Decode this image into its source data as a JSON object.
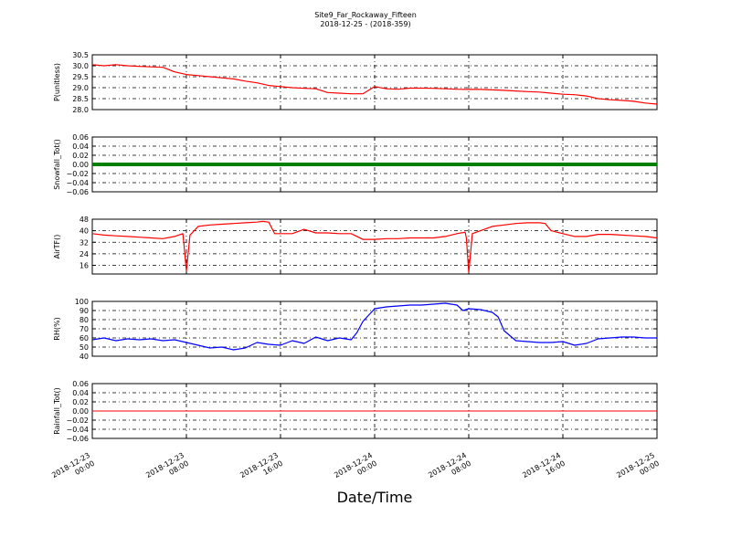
{
  "figure": {
    "title_line1": "Site9_Far_Rockaway_Fifteen",
    "title_line2": "2018-12-25 - (2018-359)",
    "xlabel": "Date/Time"
  },
  "chart_data": [
    {
      "type": "line",
      "id": "pressure",
      "ylabel": "P(unitless)",
      "ylim": [
        28.0,
        30.5
      ],
      "yticks": [
        "30.5",
        "30.0",
        "29.5",
        "29.0",
        "28.5",
        "28.0"
      ],
      "yticks_values": [
        30.5,
        30.0,
        29.5,
        29.0,
        28.5,
        28.0
      ],
      "grid": true,
      "series": [
        {
          "color": "#ff0000",
          "x_hours": [
            0,
            1,
            2,
            3,
            4,
            5,
            6,
            7,
            8,
            9,
            10,
            11,
            12,
            13,
            14,
            15,
            16,
            17,
            18,
            19,
            20,
            21,
            22,
            23,
            24,
            25,
            26,
            27,
            28,
            29,
            30,
            31,
            32,
            33,
            34,
            35,
            36,
            37,
            38,
            39,
            40,
            41,
            42,
            43,
            44,
            45,
            46,
            47,
            48
          ],
          "values": [
            30.05,
            30.0,
            30.05,
            30.0,
            29.97,
            29.95,
            29.93,
            29.72,
            29.6,
            29.55,
            29.5,
            29.45,
            29.4,
            29.3,
            29.22,
            29.1,
            29.05,
            29.0,
            28.97,
            28.95,
            28.78,
            28.75,
            28.72,
            28.72,
            29.05,
            28.95,
            28.93,
            28.98,
            28.98,
            28.97,
            28.95,
            28.93,
            28.92,
            28.92,
            28.9,
            28.88,
            28.85,
            28.82,
            28.8,
            28.75,
            28.7,
            28.68,
            28.62,
            28.5,
            28.45,
            28.42,
            28.38,
            28.3,
            28.25
          ]
        }
      ]
    },
    {
      "type": "line",
      "id": "snowfall",
      "ylabel": "Snowfall_Tot()",
      "ylim": [
        -0.06,
        0.06
      ],
      "yticks": [
        "0.06",
        "0.04",
        "0.02",
        "0.00",
        "−0.02",
        "−0.04",
        "−0.06"
      ],
      "yticks_values": [
        0.06,
        0.04,
        0.02,
        0.0,
        -0.02,
        -0.04,
        -0.06
      ],
      "grid": true,
      "series": [
        {
          "color": "#008000",
          "x_hours": [
            0,
            48
          ],
          "values": [
            0.0,
            0.0
          ],
          "width": 4
        }
      ]
    },
    {
      "type": "line",
      "id": "airtemp",
      "ylabel": "AirTF()",
      "ylim": [
        10,
        48
      ],
      "yticks": [
        "48",
        "40",
        "32",
        "24",
        "16"
      ],
      "yticks_values": [
        48,
        40,
        32,
        24,
        16
      ],
      "grid": true,
      "series": [
        {
          "color": "#ff0000",
          "x_hours": [
            0,
            1,
            2,
            3,
            4,
            5,
            6,
            7,
            7.7,
            7.8,
            8,
            8.3,
            9,
            10,
            11,
            12,
            13,
            14,
            14.5,
            15,
            15.5,
            16,
            17,
            18,
            19,
            20,
            21,
            22,
            23,
            24,
            25,
            26,
            27,
            28,
            29,
            30,
            31,
            31.7,
            31.8,
            32,
            32.3,
            33,
            34,
            35,
            36,
            37,
            38,
            38.5,
            39,
            40,
            41,
            42,
            43,
            44,
            45,
            46,
            47,
            48
          ],
          "values": [
            38,
            37,
            36.5,
            36,
            35.5,
            35,
            34.5,
            36,
            38,
            30,
            12,
            37,
            43,
            44,
            44.5,
            45,
            45.5,
            46,
            46.5,
            46,
            38,
            38,
            38,
            41,
            38.5,
            38.5,
            38,
            38,
            34,
            34,
            34.5,
            34.5,
            35,
            35,
            35,
            36,
            38,
            39,
            35,
            11,
            38,
            40,
            43,
            44,
            45,
            45.5,
            45.5,
            45,
            40,
            38,
            36,
            36,
            37.5,
            37.5,
            37,
            36.5,
            36,
            35
          ]
        }
      ]
    },
    {
      "type": "line",
      "id": "rh",
      "ylabel": "RH(%)",
      "ylim": [
        40,
        100
      ],
      "yticks": [
        "100",
        "90",
        "80",
        "70",
        "60",
        "50",
        "40"
      ],
      "yticks_values": [
        100,
        90,
        80,
        70,
        60,
        50,
        40
      ],
      "grid": true,
      "series": [
        {
          "color": "#0000ff",
          "x_hours": [
            0,
            1,
            2,
            3,
            4,
            5,
            6,
            7,
            8,
            9,
            10,
            11,
            12,
            13,
            14,
            15,
            16,
            17,
            18,
            19,
            20,
            21,
            22,
            22.5,
            23,
            24,
            25,
            26,
            27,
            28,
            29,
            30,
            31,
            31.5,
            32,
            33,
            34,
            34.5,
            35,
            36,
            37,
            38,
            39,
            40,
            41,
            42,
            43,
            44,
            45,
            46,
            47,
            48
          ],
          "values": [
            58,
            60,
            57,
            59,
            58,
            59,
            57,
            58,
            55,
            52,
            49,
            50,
            47,
            49,
            55,
            53,
            52,
            57,
            54,
            61,
            57,
            60,
            58,
            66,
            78,
            92,
            94,
            95,
            96,
            96,
            97,
            98,
            96,
            90,
            92,
            91,
            88,
            83,
            68,
            57,
            56,
            55,
            55,
            56,
            52,
            54,
            59,
            60,
            61,
            61,
            60,
            60
          ]
        }
      ]
    },
    {
      "type": "line",
      "id": "rainfall",
      "ylabel": "Rainfall_Tot()",
      "ylim": [
        -0.06,
        0.06
      ],
      "yticks": [
        "0.06",
        "0.04",
        "0.02",
        "0.00",
        "−0.02",
        "−0.04",
        "−0.06"
      ],
      "yticks_values": [
        0.06,
        0.04,
        0.02,
        0.0,
        -0.02,
        -0.04,
        -0.06
      ],
      "grid": true,
      "series": [
        {
          "color": "#ff0000",
          "x_hours": [
            0,
            48
          ],
          "values": [
            0.0,
            0.0
          ],
          "width": 1
        }
      ]
    }
  ],
  "xaxis": {
    "tick_hours": [
      0,
      8,
      16,
      24,
      32,
      40,
      48
    ],
    "tick_lines1": [
      "2018-12-23",
      "2018-12-23",
      "2018-12-23",
      "2018-12-24",
      "2018-12-24",
      "2018-12-24",
      "2018-12-25"
    ],
    "tick_lines2": [
      "00:00",
      "08:00",
      "16:00",
      "00:00",
      "08:00",
      "16:00",
      "00:00"
    ]
  }
}
